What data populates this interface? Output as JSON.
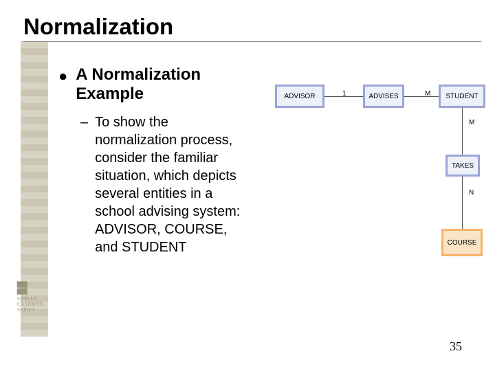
{
  "title": "Normalization",
  "heading": "A Normalization Example",
  "body": "To show the normalization process, consider the familiar situation, which depicts several entities in a school advising system: ADVISOR, COURSE, and STUDENT",
  "page_number": "35",
  "logo": {
    "line1": "SHELLY",
    "line2": "CASHMAN",
    "line3": "SERIES"
  },
  "diagram": {
    "entities": {
      "advisor": {
        "label": "ADVISOR",
        "border": "#9aa4d6",
        "fill": "#eef0fa"
      },
      "advises": {
        "label": "ADVISES",
        "border": "#9aa4d6",
        "fill": "#eef0fa"
      },
      "student": {
        "label": "STUDENT",
        "border": "#9aa4d6",
        "fill": "#eef0fa"
      },
      "takes": {
        "label": "TAKES",
        "border": "#9aa4d6",
        "fill": "#eef0fa"
      },
      "course": {
        "label": "COURSE",
        "border": "#f4b46a",
        "fill": "#fbe3c5"
      }
    },
    "cardinality": {
      "advisor_advises": "1",
      "advises_student": "M",
      "student_takes": "M",
      "takes_course": "N"
    }
  }
}
